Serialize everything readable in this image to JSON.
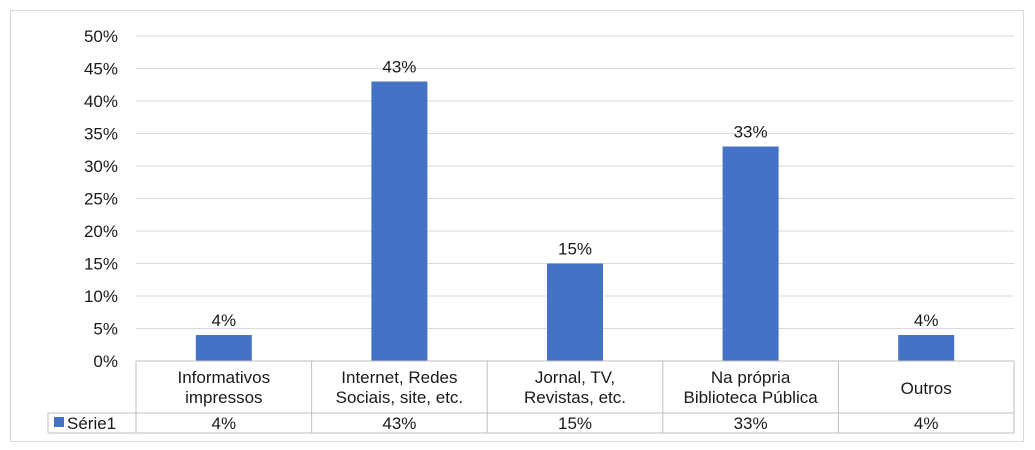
{
  "chart_data": {
    "type": "bar",
    "categories": [
      [
        "Informativos",
        "impressos"
      ],
      [
        "Internet, Redes",
        "Sociais, site, etc."
      ],
      [
        "Jornal, TV,",
        "Revistas, etc."
      ],
      [
        "Na própria",
        "Biblioteca Pública"
      ],
      [
        "Outros"
      ]
    ],
    "series": [
      {
        "name": "Série1",
        "values": [
          4,
          43,
          15,
          33,
          4
        ],
        "labels": [
          "4%",
          "43%",
          "15%",
          "33%",
          "4%"
        ]
      }
    ],
    "yticks": [
      "0%",
      "5%",
      "10%",
      "15%",
      "20%",
      "25%",
      "30%",
      "35%",
      "40%",
      "45%",
      "50%"
    ],
    "ylim": [
      0,
      50
    ],
    "grid": true,
    "data_table": true,
    "colors": {
      "bar": "#4472c4",
      "grid": "#d9d9d9",
      "table_border": "#bfbfbf"
    }
  }
}
